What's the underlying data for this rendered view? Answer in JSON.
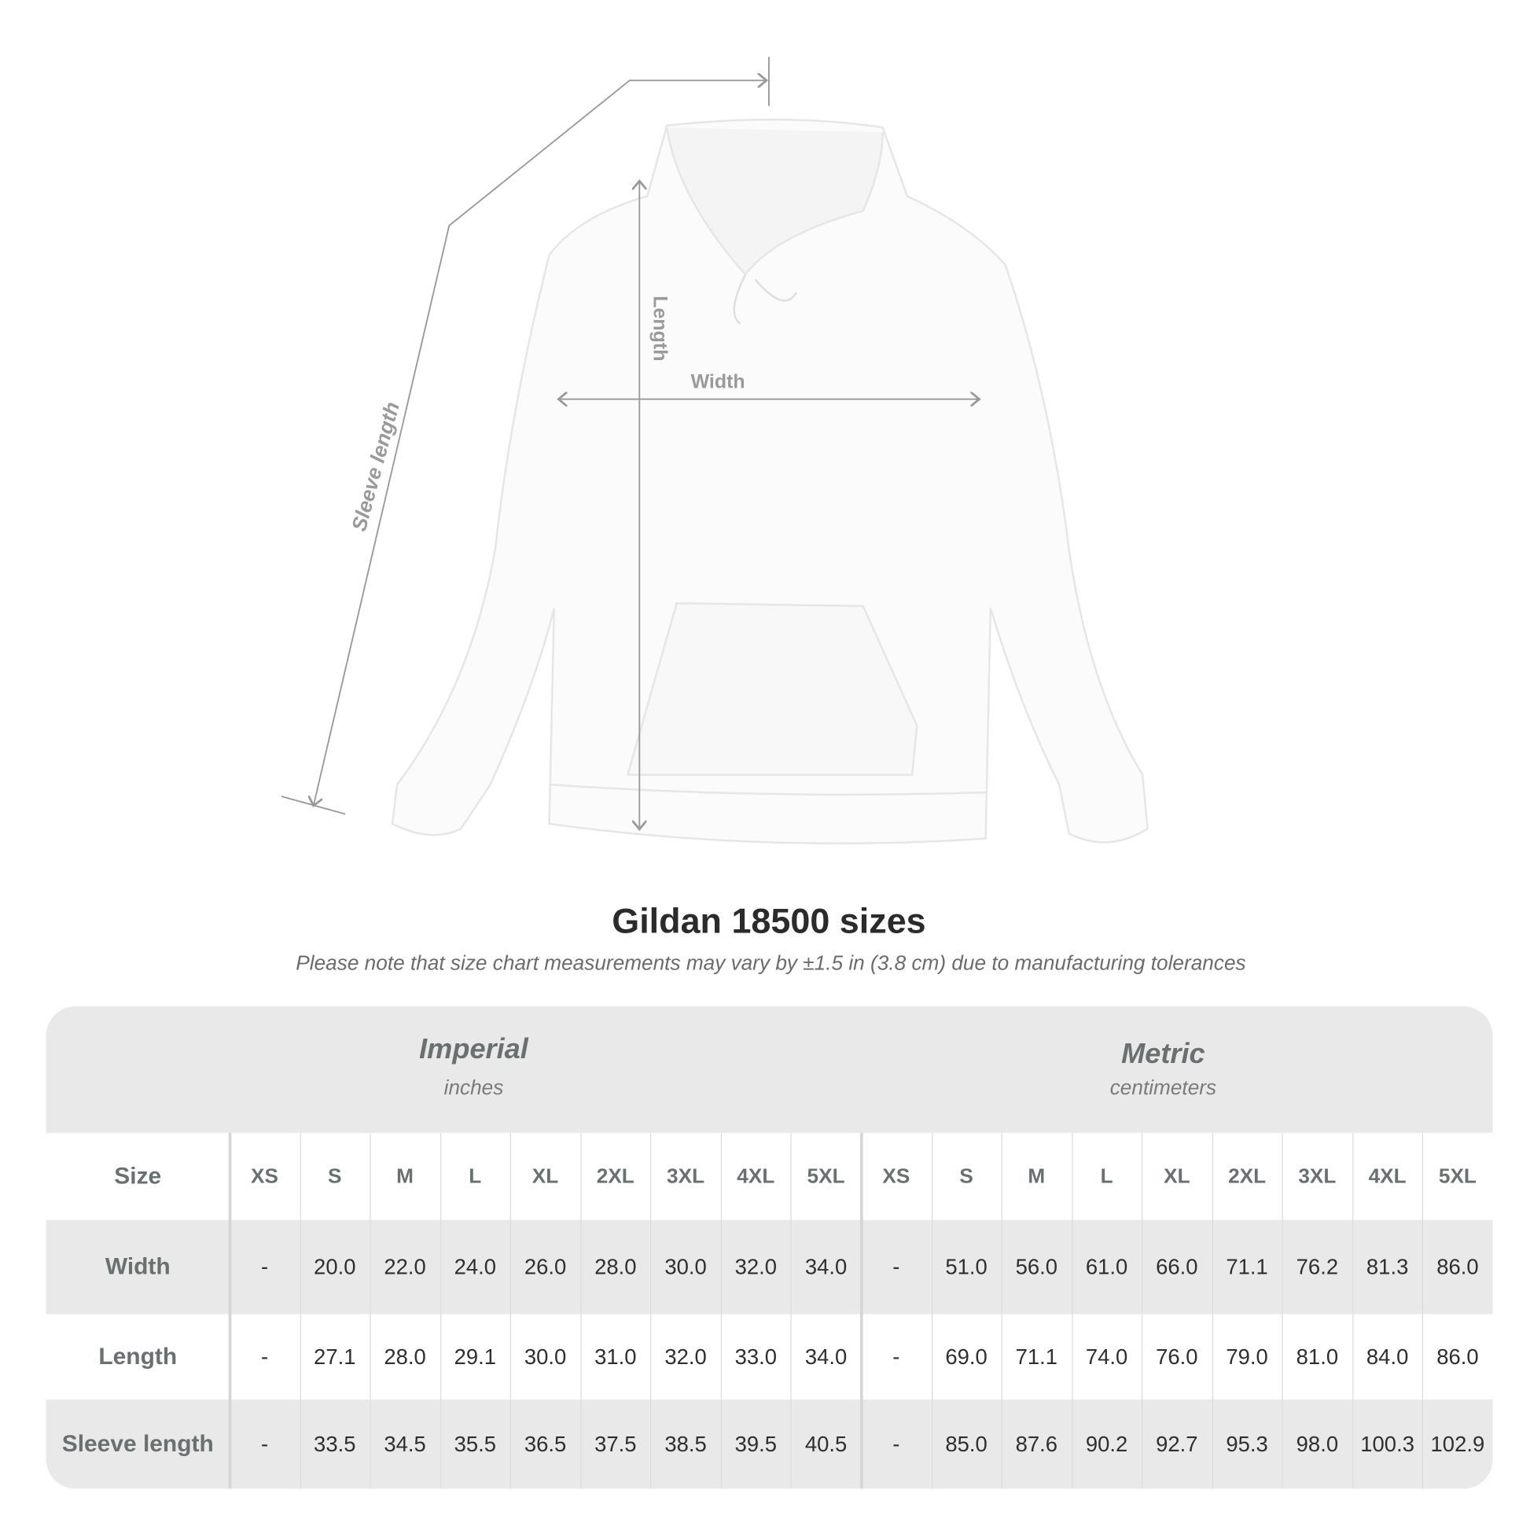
{
  "diagram": {
    "length_label": "Length",
    "width_label": "Width",
    "sleeve_label": "Sleeve length",
    "garment_color": "#fbfbfb",
    "line_color": "#9a9a9a"
  },
  "title": "Gildan 18500 sizes",
  "subtitle": "Please note that size chart measurements may vary by ±1.5 in (3.8 cm) due to manufacturing tolerances",
  "table": {
    "imperial": {
      "title": "Imperial",
      "unit": "inches"
    },
    "metric": {
      "title": "Metric",
      "unit": "centimeters"
    },
    "size_label": "Size",
    "sizes": [
      "XS",
      "S",
      "M",
      "L",
      "XL",
      "2XL",
      "3XL",
      "4XL",
      "5XL",
      "XS",
      "S",
      "M",
      "L",
      "XL",
      "2XL",
      "3XL",
      "4XL",
      "5XL"
    ],
    "rows": [
      {
        "label": "Width",
        "values": [
          "-",
          "20.0",
          "22.0",
          "24.0",
          "26.0",
          "28.0",
          "30.0",
          "32.0",
          "34.0",
          "-",
          "51.0",
          "56.0",
          "61.0",
          "66.0",
          "71.1",
          "76.2",
          "81.3",
          "86.0"
        ]
      },
      {
        "label": "Length",
        "values": [
          "-",
          "27.1",
          "28.0",
          "29.1",
          "30.0",
          "31.0",
          "32.0",
          "33.0",
          "34.0",
          "-",
          "69.0",
          "71.1",
          "74.0",
          "76.0",
          "79.0",
          "81.0",
          "84.0",
          "86.0"
        ]
      },
      {
        "label": "Sleeve length",
        "values": [
          "-",
          "33.5",
          "34.5",
          "35.5",
          "36.5",
          "37.5",
          "38.5",
          "39.5",
          "40.5",
          "-",
          "85.0",
          "87.6",
          "90.2",
          "92.7",
          "95.3",
          "98.0",
          "100.3",
          "102.9"
        ]
      }
    ],
    "header_bg": "#e9e9e9",
    "text_color": "#6a7070"
  }
}
